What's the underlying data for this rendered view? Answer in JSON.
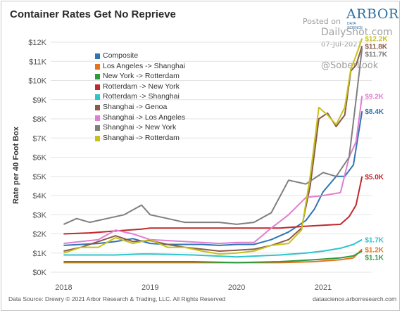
{
  "title": "Container Rates Get No Reprieve",
  "brand": {
    "name": "ARBOR",
    "sub": "DATA SCIENCE"
  },
  "watermark": {
    "posted": "Posted on",
    "site": "DailyShot.com",
    "date": "07-Jul-2021",
    "handle": "@SoberLook"
  },
  "source": "Data Source: Drewry © 2021 Arbor Research & Trading, LLC. All Rights Reserved",
  "footer_site": "datascience.arborresearch.com",
  "chart_data": {
    "type": "line",
    "title": "Container Rates Get No Reprieve",
    "xlabel": "",
    "ylabel": "Rate per 40 Foot Box",
    "ylim": [
      0,
      12000
    ],
    "xlim": [
      2017.85,
      2021.48
    ],
    "y_ticks": [
      {
        "value": 0,
        "label": "$0K"
      },
      {
        "value": 1000,
        "label": "$1K"
      },
      {
        "value": 2000,
        "label": "$2K"
      },
      {
        "value": 3000,
        "label": "$3K"
      },
      {
        "value": 4000,
        "label": "$4K"
      },
      {
        "value": 5000,
        "label": "$5K"
      },
      {
        "value": 6000,
        "label": "$6K"
      },
      {
        "value": 7000,
        "label": "$7K"
      },
      {
        "value": 8000,
        "label": "$8K"
      },
      {
        "value": 9000,
        "label": "$9K"
      },
      {
        "value": 10000,
        "label": "$10K"
      },
      {
        "value": 11000,
        "label": "$11K"
      },
      {
        "value": 12000,
        "label": "$12K"
      }
    ],
    "x_ticks": [
      {
        "value": 2018,
        "label": "2018"
      },
      {
        "value": 2019,
        "label": "2019"
      },
      {
        "value": 2020,
        "label": "2020"
      },
      {
        "value": 2021,
        "label": "2021"
      }
    ],
    "grid": "horizontal",
    "legend_position": "top-left",
    "series": [
      {
        "name": "Composite",
        "color": "#2e75b6",
        "points": [
          [
            2018.0,
            1400
          ],
          [
            2018.2,
            1450
          ],
          [
            2018.4,
            1500
          ],
          [
            2018.6,
            1600
          ],
          [
            2018.8,
            1750
          ],
          [
            2019.0,
            1500
          ],
          [
            2019.2,
            1450
          ],
          [
            2019.4,
            1450
          ],
          [
            2019.6,
            1450
          ],
          [
            2019.8,
            1400
          ],
          [
            2020.0,
            1450
          ],
          [
            2020.2,
            1450
          ],
          [
            2020.4,
            1700
          ],
          [
            2020.6,
            2100
          ],
          [
            2020.8,
            2700
          ],
          [
            2020.9,
            3300
          ],
          [
            2021.0,
            4200
          ],
          [
            2021.15,
            5000
          ],
          [
            2021.25,
            5000
          ],
          [
            2021.35,
            5600
          ],
          [
            2021.45,
            8400
          ]
        ],
        "end_label": "$8.4K"
      },
      {
        "name": "Los Angeles -> Shanghai",
        "color": "#e8731a",
        "points": [
          [
            2018.0,
            500
          ],
          [
            2018.5,
            500
          ],
          [
            2019.0,
            500
          ],
          [
            2019.5,
            500
          ],
          [
            2020.0,
            500
          ],
          [
            2020.5,
            500
          ],
          [
            2020.9,
            550
          ],
          [
            2021.2,
            650
          ],
          [
            2021.35,
            750
          ],
          [
            2021.45,
            1200
          ]
        ],
        "end_label": "$1.2K"
      },
      {
        "name": "New York -> Rotterdam",
        "color": "#2e9a3e",
        "points": [
          [
            2018.0,
            550
          ],
          [
            2018.5,
            550
          ],
          [
            2019.0,
            550
          ],
          [
            2019.5,
            550
          ],
          [
            2020.0,
            500
          ],
          [
            2020.5,
            550
          ],
          [
            2020.9,
            650
          ],
          [
            2021.2,
            750
          ],
          [
            2021.35,
            850
          ],
          [
            2021.45,
            1100
          ]
        ],
        "end_label": "$1.1K"
      },
      {
        "name": "Rotterdam -> New York",
        "color": "#c0282d",
        "points": [
          [
            2018.0,
            2000
          ],
          [
            2018.3,
            2050
          ],
          [
            2018.6,
            2150
          ],
          [
            2018.9,
            2250
          ],
          [
            2019.0,
            2300
          ],
          [
            2019.5,
            2300
          ],
          [
            2020.0,
            2300
          ],
          [
            2020.5,
            2300
          ],
          [
            2020.8,
            2400
          ],
          [
            2021.0,
            2450
          ],
          [
            2021.2,
            2500
          ],
          [
            2021.3,
            2900
          ],
          [
            2021.38,
            3500
          ],
          [
            2021.45,
            5000
          ]
        ],
        "end_label": "$5.0K"
      },
      {
        "name": "Rotterdam -> Shanghai",
        "color": "#2ec4cc",
        "points": [
          [
            2018.0,
            900
          ],
          [
            2018.3,
            900
          ],
          [
            2018.6,
            900
          ],
          [
            2018.9,
            950
          ],
          [
            2019.0,
            950
          ],
          [
            2019.5,
            900
          ],
          [
            2020.0,
            800
          ],
          [
            2020.5,
            900
          ],
          [
            2020.8,
            1000
          ],
          [
            2021.0,
            1100
          ],
          [
            2021.2,
            1250
          ],
          [
            2021.35,
            1450
          ],
          [
            2021.45,
            1700
          ]
        ],
        "end_label": "$1.7K"
      },
      {
        "name": "Shanghai -> Genoa",
        "color": "#8c5a46",
        "points": [
          [
            2018.0,
            1100
          ],
          [
            2018.2,
            1300
          ],
          [
            2018.4,
            1600
          ],
          [
            2018.6,
            1900
          ],
          [
            2018.8,
            1600
          ],
          [
            2019.0,
            1650
          ],
          [
            2019.2,
            1450
          ],
          [
            2019.4,
            1300
          ],
          [
            2019.6,
            1200
          ],
          [
            2019.8,
            1100
          ],
          [
            2020.0,
            1150
          ],
          [
            2020.2,
            1200
          ],
          [
            2020.4,
            1400
          ],
          [
            2020.6,
            1700
          ],
          [
            2020.75,
            2300
          ],
          [
            2020.85,
            4500
          ],
          [
            2020.95,
            8000
          ],
          [
            2021.05,
            8300
          ],
          [
            2021.15,
            7600
          ],
          [
            2021.25,
            8200
          ],
          [
            2021.32,
            10500
          ],
          [
            2021.38,
            10800
          ],
          [
            2021.45,
            11800
          ]
        ],
        "end_label": "$11.8K"
      },
      {
        "name": "Shanghai -> Los Angeles",
        "color": "#e07fd0",
        "points": [
          [
            2018.0,
            1500
          ],
          [
            2018.2,
            1600
          ],
          [
            2018.4,
            1700
          ],
          [
            2018.6,
            2200
          ],
          [
            2018.8,
            2000
          ],
          [
            2019.0,
            1700
          ],
          [
            2019.2,
            1650
          ],
          [
            2019.4,
            1600
          ],
          [
            2019.6,
            1550
          ],
          [
            2019.8,
            1500
          ],
          [
            2020.0,
            1550
          ],
          [
            2020.2,
            1550
          ],
          [
            2020.4,
            2300
          ],
          [
            2020.6,
            3000
          ],
          [
            2020.8,
            3900
          ],
          [
            2021.0,
            4000
          ],
          [
            2021.2,
            4150
          ],
          [
            2021.3,
            6000
          ],
          [
            2021.38,
            6800
          ],
          [
            2021.45,
            9200
          ]
        ],
        "end_label": "$9.2K"
      },
      {
        "name": "Shanghai -> New York",
        "color": "#7f7f7f",
        "points": [
          [
            2018.0,
            2500
          ],
          [
            2018.15,
            2800
          ],
          [
            2018.3,
            2600
          ],
          [
            2018.5,
            2800
          ],
          [
            2018.7,
            3000
          ],
          [
            2018.9,
            3500
          ],
          [
            2019.0,
            3000
          ],
          [
            2019.2,
            2800
          ],
          [
            2019.4,
            2600
          ],
          [
            2019.6,
            2600
          ],
          [
            2019.8,
            2600
          ],
          [
            2020.0,
            2500
          ],
          [
            2020.2,
            2600
          ],
          [
            2020.4,
            3100
          ],
          [
            2020.6,
            4800
          ],
          [
            2020.8,
            4600
          ],
          [
            2021.0,
            5200
          ],
          [
            2021.15,
            5000
          ],
          [
            2021.3,
            6000
          ],
          [
            2021.38,
            9000
          ],
          [
            2021.45,
            11700
          ]
        ],
        "end_label": "$11.7K"
      },
      {
        "name": "Shanghai -> Rotterdam",
        "color": "#c5c21c",
        "points": [
          [
            2018.0,
            1000
          ],
          [
            2018.2,
            1300
          ],
          [
            2018.4,
            1300
          ],
          [
            2018.6,
            1800
          ],
          [
            2018.8,
            1500
          ],
          [
            2019.0,
            1700
          ],
          [
            2019.2,
            1300
          ],
          [
            2019.4,
            1300
          ],
          [
            2019.6,
            1100
          ],
          [
            2019.8,
            950
          ],
          [
            2020.0,
            1000
          ],
          [
            2020.2,
            1100
          ],
          [
            2020.4,
            1400
          ],
          [
            2020.6,
            1500
          ],
          [
            2020.75,
            2200
          ],
          [
            2020.85,
            5000
          ],
          [
            2020.95,
            8600
          ],
          [
            2021.05,
            8200
          ],
          [
            2021.15,
            7700
          ],
          [
            2021.25,
            8600
          ],
          [
            2021.32,
            10600
          ],
          [
            2021.38,
            11300
          ],
          [
            2021.45,
            12200
          ]
        ],
        "end_label": "$12.2K"
      }
    ]
  }
}
